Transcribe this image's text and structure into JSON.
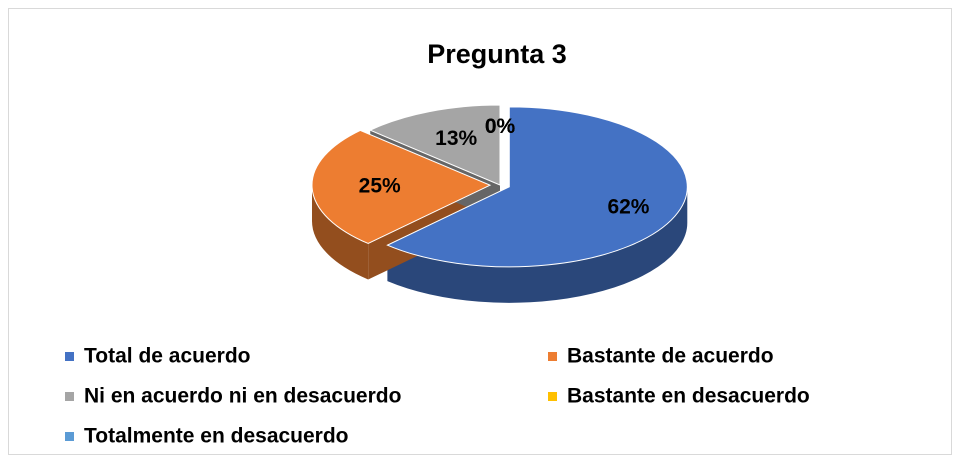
{
  "chart_data": {
    "type": "pie",
    "title": "Pregunta 3",
    "categories": [
      "Total de acuerdo",
      "Bastante de acuerdo",
      "Ni en acuerdo ni en desacuerdo",
      "Bastante en desacuerdo",
      "Totalmente en desacuerdo"
    ],
    "values": [
      62,
      25,
      13,
      0,
      0
    ],
    "value_labels": [
      "62%",
      "25%",
      "13%",
      "0%",
      "0%"
    ],
    "colors": [
      "#4472c4",
      "#ed7d31",
      "#a5a5a5",
      "#ffc000",
      "#5b9bd5"
    ],
    "legend": "bottom"
  }
}
